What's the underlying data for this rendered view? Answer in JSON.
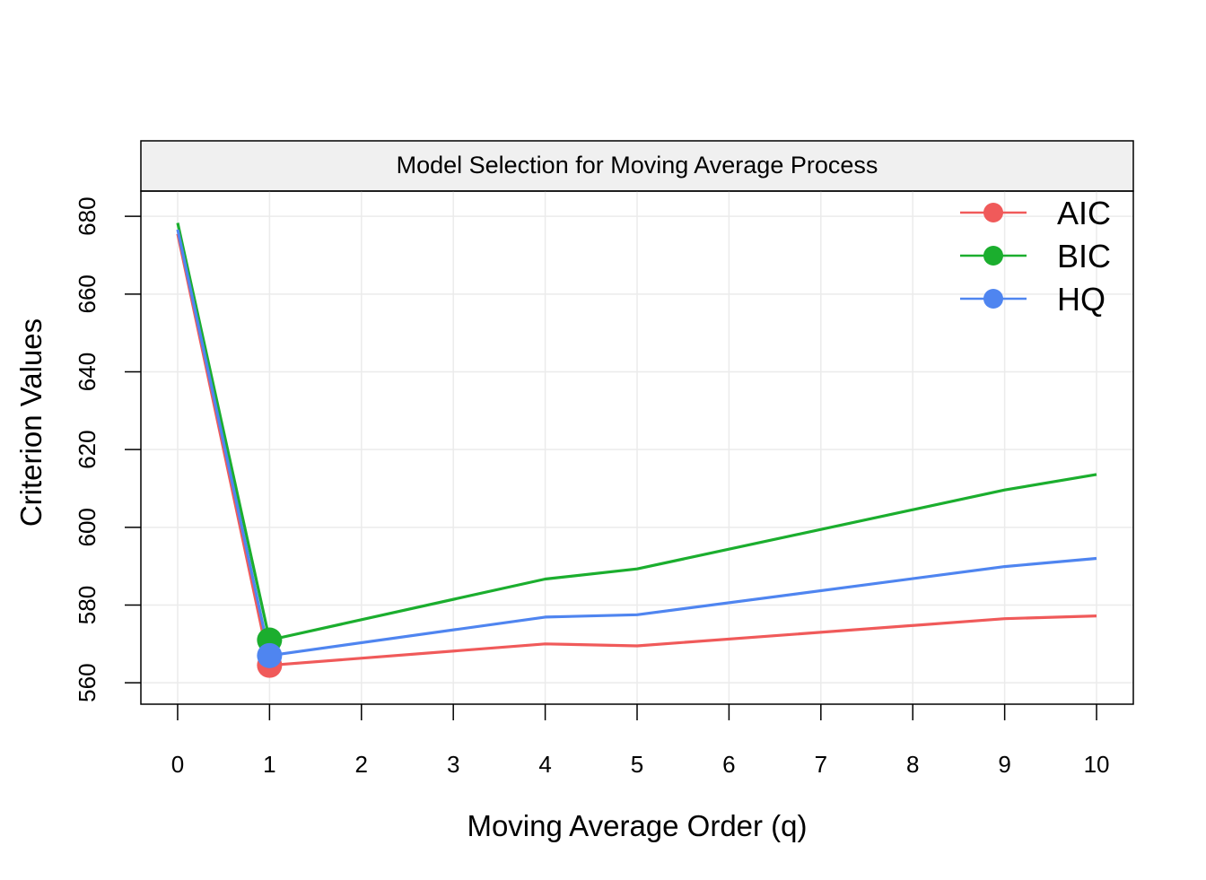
{
  "chart_data": {
    "type": "line",
    "title": "Model Selection for Moving Average Process",
    "xlabel": "Moving Average Order (q)",
    "ylabel": "Criterion Values",
    "xlim": [
      -0.4,
      10.4
    ],
    "ylim": [
      554.5,
      686.5
    ],
    "x_ticks": [
      0,
      1,
      2,
      3,
      4,
      5,
      6,
      7,
      8,
      9,
      10
    ],
    "y_ticks": [
      560,
      580,
      600,
      620,
      640,
      660,
      680
    ],
    "grid": true,
    "legend_position": "top-right",
    "x": [
      0,
      1,
      4,
      5,
      9,
      10
    ],
    "series": [
      {
        "name": "AIC",
        "color": "#F05A5A",
        "values": [
          675.5,
          564.5,
          570.0,
          569.5,
          576.5,
          577.2
        ],
        "min_x": 1,
        "min_y": 564.5
      },
      {
        "name": "BIC",
        "color": "#1BAE2E",
        "values": [
          678.3,
          571.0,
          586.7,
          589.3,
          609.6,
          613.6
        ],
        "min_x": 1,
        "min_y": 571.0
      },
      {
        "name": "HQ",
        "color": "#4F85F0",
        "values": [
          676.6,
          567.0,
          576.9,
          577.5,
          589.9,
          592.0
        ],
        "min_x": 1,
        "min_y": 567.0
      }
    ]
  }
}
